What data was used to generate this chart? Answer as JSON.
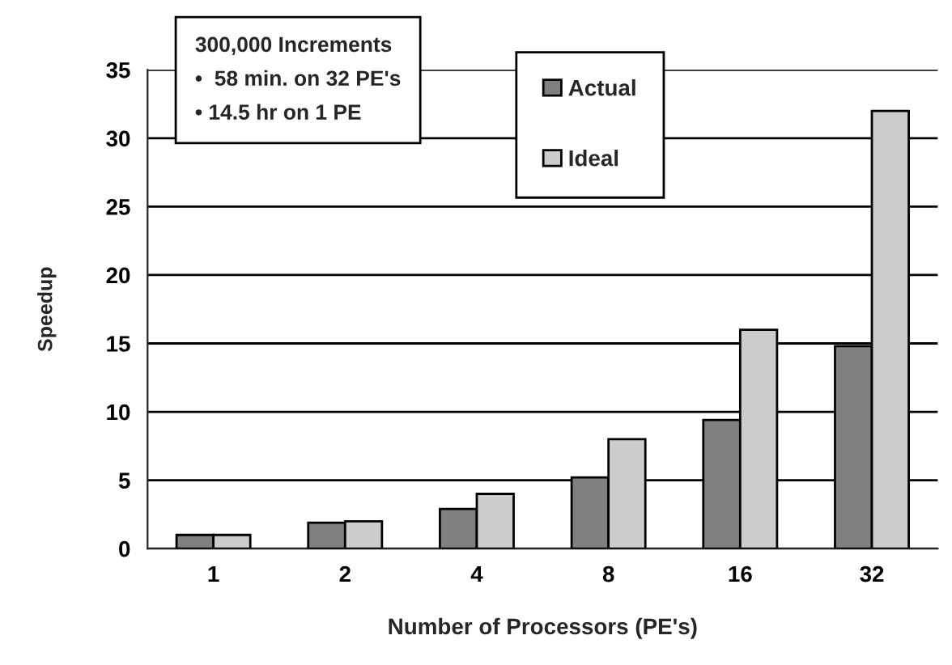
{
  "chart_data": {
    "type": "bar",
    "xlabel": "Number of Processors (PE's)",
    "ylabel": "Speedup",
    "categories": [
      "1",
      "2",
      "4",
      "8",
      "16",
      "32"
    ],
    "series": [
      {
        "name": "Actual",
        "color": "#808080",
        "values": [
          1,
          1.9,
          2.9,
          5.2,
          9.4,
          14.8
        ]
      },
      {
        "name": "Ideal",
        "color": "#cccccc",
        "values": [
          1,
          2,
          4,
          8,
          16,
          32
        ]
      }
    ],
    "ylim": [
      0,
      35
    ],
    "yticks": [
      0,
      5,
      10,
      15,
      20,
      25,
      30,
      35
    ],
    "grid": "y",
    "legend": "top",
    "annotations": [
      "300,000 Increments",
      "•  58 min. on 32 PE's",
      "• 14.5 hr on 1 PE"
    ]
  }
}
